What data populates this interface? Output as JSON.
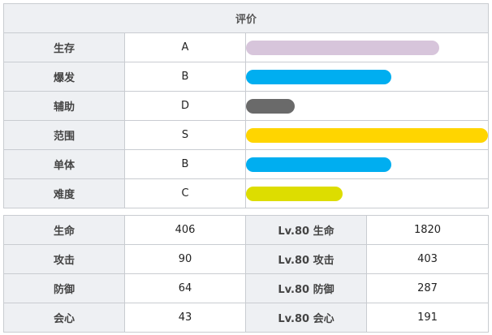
{
  "rating": {
    "title": "评价",
    "rows": [
      {
        "name": "生存",
        "grade": "A",
        "fill": 0.8,
        "color": "#d7c5db"
      },
      {
        "name": "爆发",
        "grade": "B",
        "fill": 0.6,
        "color": "#00aef0"
      },
      {
        "name": "辅助",
        "grade": "D",
        "fill": 0.2,
        "color": "#6a6a6a"
      },
      {
        "name": "范围",
        "grade": "S",
        "fill": 1.0,
        "color": "#ffd500"
      },
      {
        "name": "单体",
        "grade": "B",
        "fill": 0.6,
        "color": "#00aef0"
      },
      {
        "name": "难度",
        "grade": "C",
        "fill": 0.4,
        "color": "#dddd00"
      }
    ]
  },
  "stats": {
    "rows": [
      {
        "label": "生命",
        "value": "406",
        "lv_label": "Lv.80 生命",
        "lv_value": "1820"
      },
      {
        "label": "攻击",
        "value": "90",
        "lv_label": "Lv.80 攻击",
        "lv_value": "403"
      },
      {
        "label": "防御",
        "value": "64",
        "lv_label": "Lv.80 防御",
        "lv_value": "287"
      },
      {
        "label": "会心",
        "value": "43",
        "lv_label": "Lv.80 会心",
        "lv_value": "191"
      }
    ]
  }
}
